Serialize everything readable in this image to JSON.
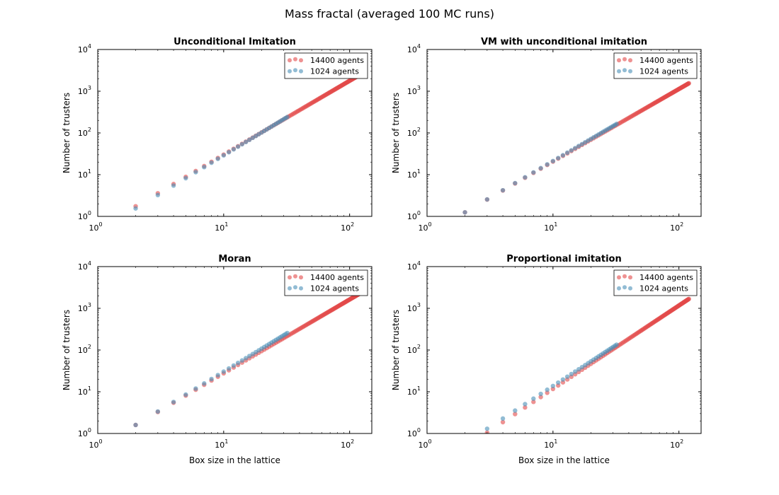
{
  "figure_title": "Mass fractal (averaged 100 MC runs)",
  "colors": {
    "series_large": "#e24a4a",
    "series_small": "#4a90b8"
  },
  "chart_data": [
    {
      "type": "scatter",
      "title": "Unconditional Imitation",
      "xlabel": "",
      "ylabel": "Number of trusters",
      "xscale": "log",
      "yscale": "log",
      "xlim": [
        1,
        150
      ],
      "ylim": [
        1,
        10000
      ],
      "xticks": [
        {
          "base": "10",
          "exp": "0",
          "value": 1
        },
        {
          "base": "10",
          "exp": "1",
          "value": 10
        },
        {
          "base": "10",
          "exp": "2",
          "value": 100
        }
      ],
      "yticks": [
        {
          "base": "10",
          "exp": "0",
          "value": 1
        },
        {
          "base": "10",
          "exp": "1",
          "value": 10
        },
        {
          "base": "10",
          "exp": "2",
          "value": 100
        },
        {
          "base": "10",
          "exp": "3",
          "value": 1000
        },
        {
          "base": "10",
          "exp": "4",
          "value": 10000
        }
      ],
      "legend": {
        "position": "top-right",
        "entries": [
          "14400 agents",
          "1024 agents"
        ]
      },
      "series": [
        {
          "name": "14400 agents",
          "x_range": [
            2,
            120
          ],
          "y_at_min": 1.75,
          "exponent": 1.77
        },
        {
          "name": "1024 agents",
          "x_range": [
            2,
            32
          ],
          "y_at_min": 1.55,
          "exponent": 1.82
        }
      ]
    },
    {
      "type": "scatter",
      "title": "VM with unconditional imitation",
      "xlabel": "",
      "ylabel": "Number of trusters",
      "xscale": "log",
      "yscale": "log",
      "xlim": [
        1,
        150
      ],
      "ylim": [
        1,
        10000
      ],
      "xticks": [
        {
          "base": "10",
          "exp": "0",
          "value": 1
        },
        {
          "base": "10",
          "exp": "1",
          "value": 10
        },
        {
          "base": "10",
          "exp": "2",
          "value": 100
        }
      ],
      "yticks": [
        {
          "base": "10",
          "exp": "0",
          "value": 1
        },
        {
          "base": "10",
          "exp": "1",
          "value": 10
        },
        {
          "base": "10",
          "exp": "2",
          "value": 100
        },
        {
          "base": "10",
          "exp": "3",
          "value": 1000
        },
        {
          "base": "10",
          "exp": "4",
          "value": 10000
        }
      ],
      "legend": {
        "position": "top-right",
        "entries": [
          "14400 agents",
          "1024 agents"
        ]
      },
      "series": [
        {
          "name": "14400 agents",
          "x_range": [
            2,
            120
          ],
          "y_at_min": 1.25,
          "exponent": 1.74
        },
        {
          "name": "1024 agents",
          "x_range": [
            2,
            32
          ],
          "y_at_min": 1.25,
          "exponent": 1.76
        }
      ]
    },
    {
      "type": "scatter",
      "title": "Moran",
      "xlabel": "Box size in the lattice",
      "ylabel": "Number of trusters",
      "xscale": "log",
      "yscale": "log",
      "xlim": [
        1,
        150
      ],
      "ylim": [
        1,
        10000
      ],
      "xticks": [
        {
          "base": "10",
          "exp": "0",
          "value": 1
        },
        {
          "base": "10",
          "exp": "1",
          "value": 10
        },
        {
          "base": "10",
          "exp": "2",
          "value": 100
        }
      ],
      "yticks": [
        {
          "base": "10",
          "exp": "0",
          "value": 1
        },
        {
          "base": "10",
          "exp": "1",
          "value": 10
        },
        {
          "base": "10",
          "exp": "2",
          "value": 100
        },
        {
          "base": "10",
          "exp": "3",
          "value": 1000
        },
        {
          "base": "10",
          "exp": "4",
          "value": 10000
        }
      ],
      "legend": {
        "position": "top-right",
        "entries": [
          "14400 agents",
          "1024 agents"
        ]
      },
      "series": [
        {
          "name": "14400 agents",
          "x_range": [
            2,
            120
          ],
          "y_at_min": 1.6,
          "exponent": 1.77
        },
        {
          "name": "1024 agents",
          "x_range": [
            2,
            32
          ],
          "y_at_min": 1.6,
          "exponent": 1.83
        }
      ]
    },
    {
      "type": "scatter",
      "title": "Proportional imitation",
      "xlabel": "Box size in the lattice",
      "ylabel": "Number of trusters",
      "xscale": "log",
      "yscale": "log",
      "xlim": [
        1,
        150
      ],
      "ylim": [
        1,
        10000
      ],
      "xticks": [
        {
          "base": "10",
          "exp": "0",
          "value": 1
        },
        {
          "base": "10",
          "exp": "1",
          "value": 10
        },
        {
          "base": "10",
          "exp": "2",
          "value": 100
        }
      ],
      "yticks": [
        {
          "base": "10",
          "exp": "0",
          "value": 1
        },
        {
          "base": "10",
          "exp": "1",
          "value": 10
        },
        {
          "base": "10",
          "exp": "2",
          "value": 100
        },
        {
          "base": "10",
          "exp": "3",
          "value": 1000
        },
        {
          "base": "10",
          "exp": "4",
          "value": 10000
        }
      ],
      "legend": {
        "position": "top-right",
        "entries": [
          "14400 agents",
          "1024 agents"
        ]
      },
      "series": [
        {
          "name": "14400 agents",
          "x_range": [
            3,
            120
          ],
          "y_at_min": 1.05,
          "exponent": 2.0
        },
        {
          "name": "1024 agents",
          "x_range": [
            3,
            32
          ],
          "y_at_min": 1.3,
          "exponent": 1.96
        }
      ]
    }
  ]
}
